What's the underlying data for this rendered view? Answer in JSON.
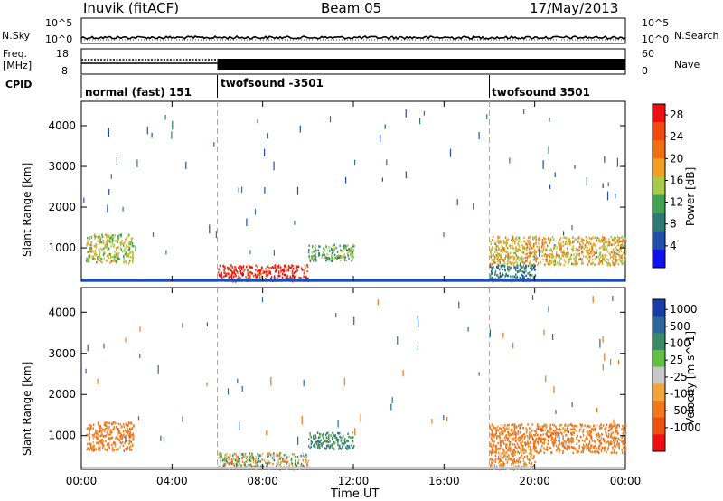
{
  "header": {
    "station": "Inuvik (fitACF)",
    "beam": "Beam 05",
    "date": "17/May/2013"
  },
  "left_labels": {
    "nsky": "N.Sky",
    "freq": "Freq.",
    "freq_unit": "[MHz]",
    "cpid": "CPID"
  },
  "right_labels": {
    "nsearch": "N.Search",
    "nave": "Nave"
  },
  "ticks": {
    "nsky_top": "10^5",
    "nsky_bot": "10^0",
    "nsearch_top": "10^5",
    "nsearch_bot": "10^0",
    "freq_top": "18",
    "freq_bot": "8",
    "nave_top": "60",
    "nave_bot": "0"
  },
  "cpid_segments": [
    {
      "label": "normal (fast) 151"
    },
    {
      "label": "twofsound -3501"
    },
    {
      "label": "twofsound 3501"
    }
  ],
  "colors": {
    "power_scale": [
      "#1010ee",
      "#1f4fa8",
      "#2e7a72",
      "#3fa350",
      "#a8c94a",
      "#f0a020",
      "#f07010",
      "#f04a10",
      "#ee1010"
    ],
    "velocity_scale": [
      "#1a3aa8",
      "#2e66a0",
      "#3a8a66",
      "#62bf40",
      "#c8c8c8",
      "#f2a43a",
      "#f07818",
      "#ee5010",
      "#ee1010"
    ]
  },
  "chart_data": [
    {
      "type": "heatmap",
      "title": "Power",
      "xlabel": "Time UT",
      "ylabel": "Slant Range [km]",
      "x_ticks": [
        "00:00",
        "04:00",
        "08:00",
        "12:00",
        "16:00",
        "20:00",
        "00:00"
      ],
      "y_ticks": [
        "1000",
        "2000",
        "3000",
        "4000"
      ],
      "ylim": [
        180,
        4600
      ],
      "colorbar": {
        "label": "Power [dB]",
        "ticks": [
          "4",
          "8",
          "12",
          "16",
          "20",
          "24",
          "28"
        ],
        "range": [
          0,
          30
        ]
      },
      "scatter_regions": [
        {
          "t0": 0.2,
          "t1": 2.3,
          "r0": 650,
          "r1": 1350,
          "value": 15
        },
        {
          "t0": 6.0,
          "t1": 10.0,
          "r0": 200,
          "r1": 600,
          "value": 28
        },
        {
          "t0": 10.0,
          "t1": 12.0,
          "r0": 700,
          "r1": 1100,
          "value": 12
        },
        {
          "t0": 18.0,
          "t1": 24.0,
          "r0": 600,
          "r1": 1300,
          "value": 18
        },
        {
          "t0": 18.0,
          "t1": 20.0,
          "r0": 200,
          "r1": 600,
          "value": 8
        }
      ],
      "dashed_lines_hours": [
        6,
        18
      ]
    },
    {
      "type": "heatmap",
      "title": "Velocity",
      "xlabel": "Time UT",
      "ylabel": "Slant Range [km]",
      "x_ticks": [
        "00:00",
        "04:00",
        "08:00",
        "12:00",
        "16:00",
        "20:00",
        "00:00"
      ],
      "y_ticks": [
        "1000",
        "2000",
        "3000",
        "4000"
      ],
      "ylim": [
        180,
        4600
      ],
      "colorbar": {
        "label": "Velocity [m s^-1]",
        "ticks": [
          "1000",
          "500",
          "100",
          "25",
          "-25",
          "-100",
          "-500",
          "-1000"
        ],
        "range": [
          -1000,
          1000
        ]
      },
      "scatter_regions": [
        {
          "t0": 0.2,
          "t1": 2.3,
          "r0": 650,
          "r1": 1350,
          "value": -300
        },
        {
          "t0": 6.0,
          "t1": 10.0,
          "r0": 200,
          "r1": 600,
          "value": 20
        },
        {
          "t0": 10.0,
          "t1": 12.0,
          "r0": 700,
          "r1": 1100,
          "value": 300
        },
        {
          "t0": 18.0,
          "t1": 24.0,
          "r0": 600,
          "r1": 1300,
          "value": -300
        },
        {
          "t0": 18.0,
          "t1": 20.0,
          "r0": 200,
          "r1": 600,
          "value": -200
        }
      ],
      "dashed_lines_hours": [
        6,
        18
      ]
    }
  ]
}
